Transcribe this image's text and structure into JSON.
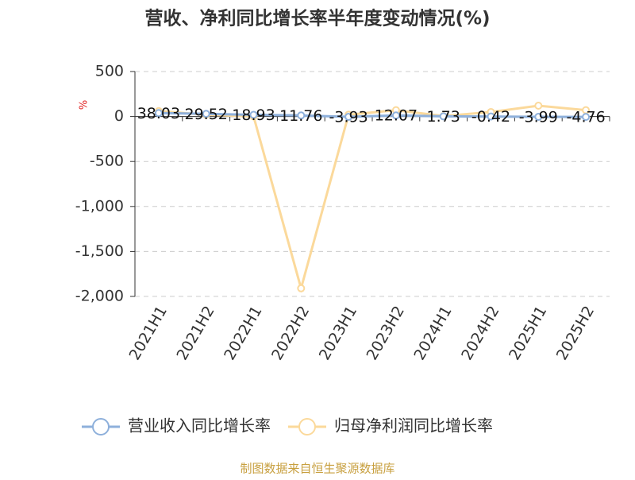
{
  "chart_data": {
    "type": "line",
    "title": "营收、净利同比增长率半年度变动情况(%)",
    "y_unit": "%",
    "source": "制图数据来自恒生聚源数据库",
    "categories": [
      "2021H1",
      "2021H2",
      "2022H1",
      "2022H2",
      "2023H1",
      "2023H2",
      "2024H1",
      "2024H2",
      "2025H1",
      "2025H2"
    ],
    "series": [
      {
        "name": "营业收入同比增长率",
        "color": "#8eb0db",
        "values": [
          38.03,
          29.52,
          18.93,
          11.76,
          -3.93,
          12.07,
          1.73,
          -0.42,
          -3.99,
          -4.76
        ],
        "show_labels": true
      },
      {
        "name": "归母净利润同比增长率",
        "color": "#fbd99b",
        "values": [
          60,
          20,
          0,
          -1910,
          20,
          70,
          5,
          50,
          120,
          70
        ],
        "show_labels": false
      }
    ],
    "ylim": [
      -2000,
      500
    ],
    "yticks": [
      500,
      0,
      -500,
      {
        "value": -1000,
        "label": "-1,000"
      },
      {
        "value": -1500,
        "label": "-1,500"
      },
      {
        "value": -2000,
        "label": "-2,000"
      }
    ],
    "grid": true
  }
}
